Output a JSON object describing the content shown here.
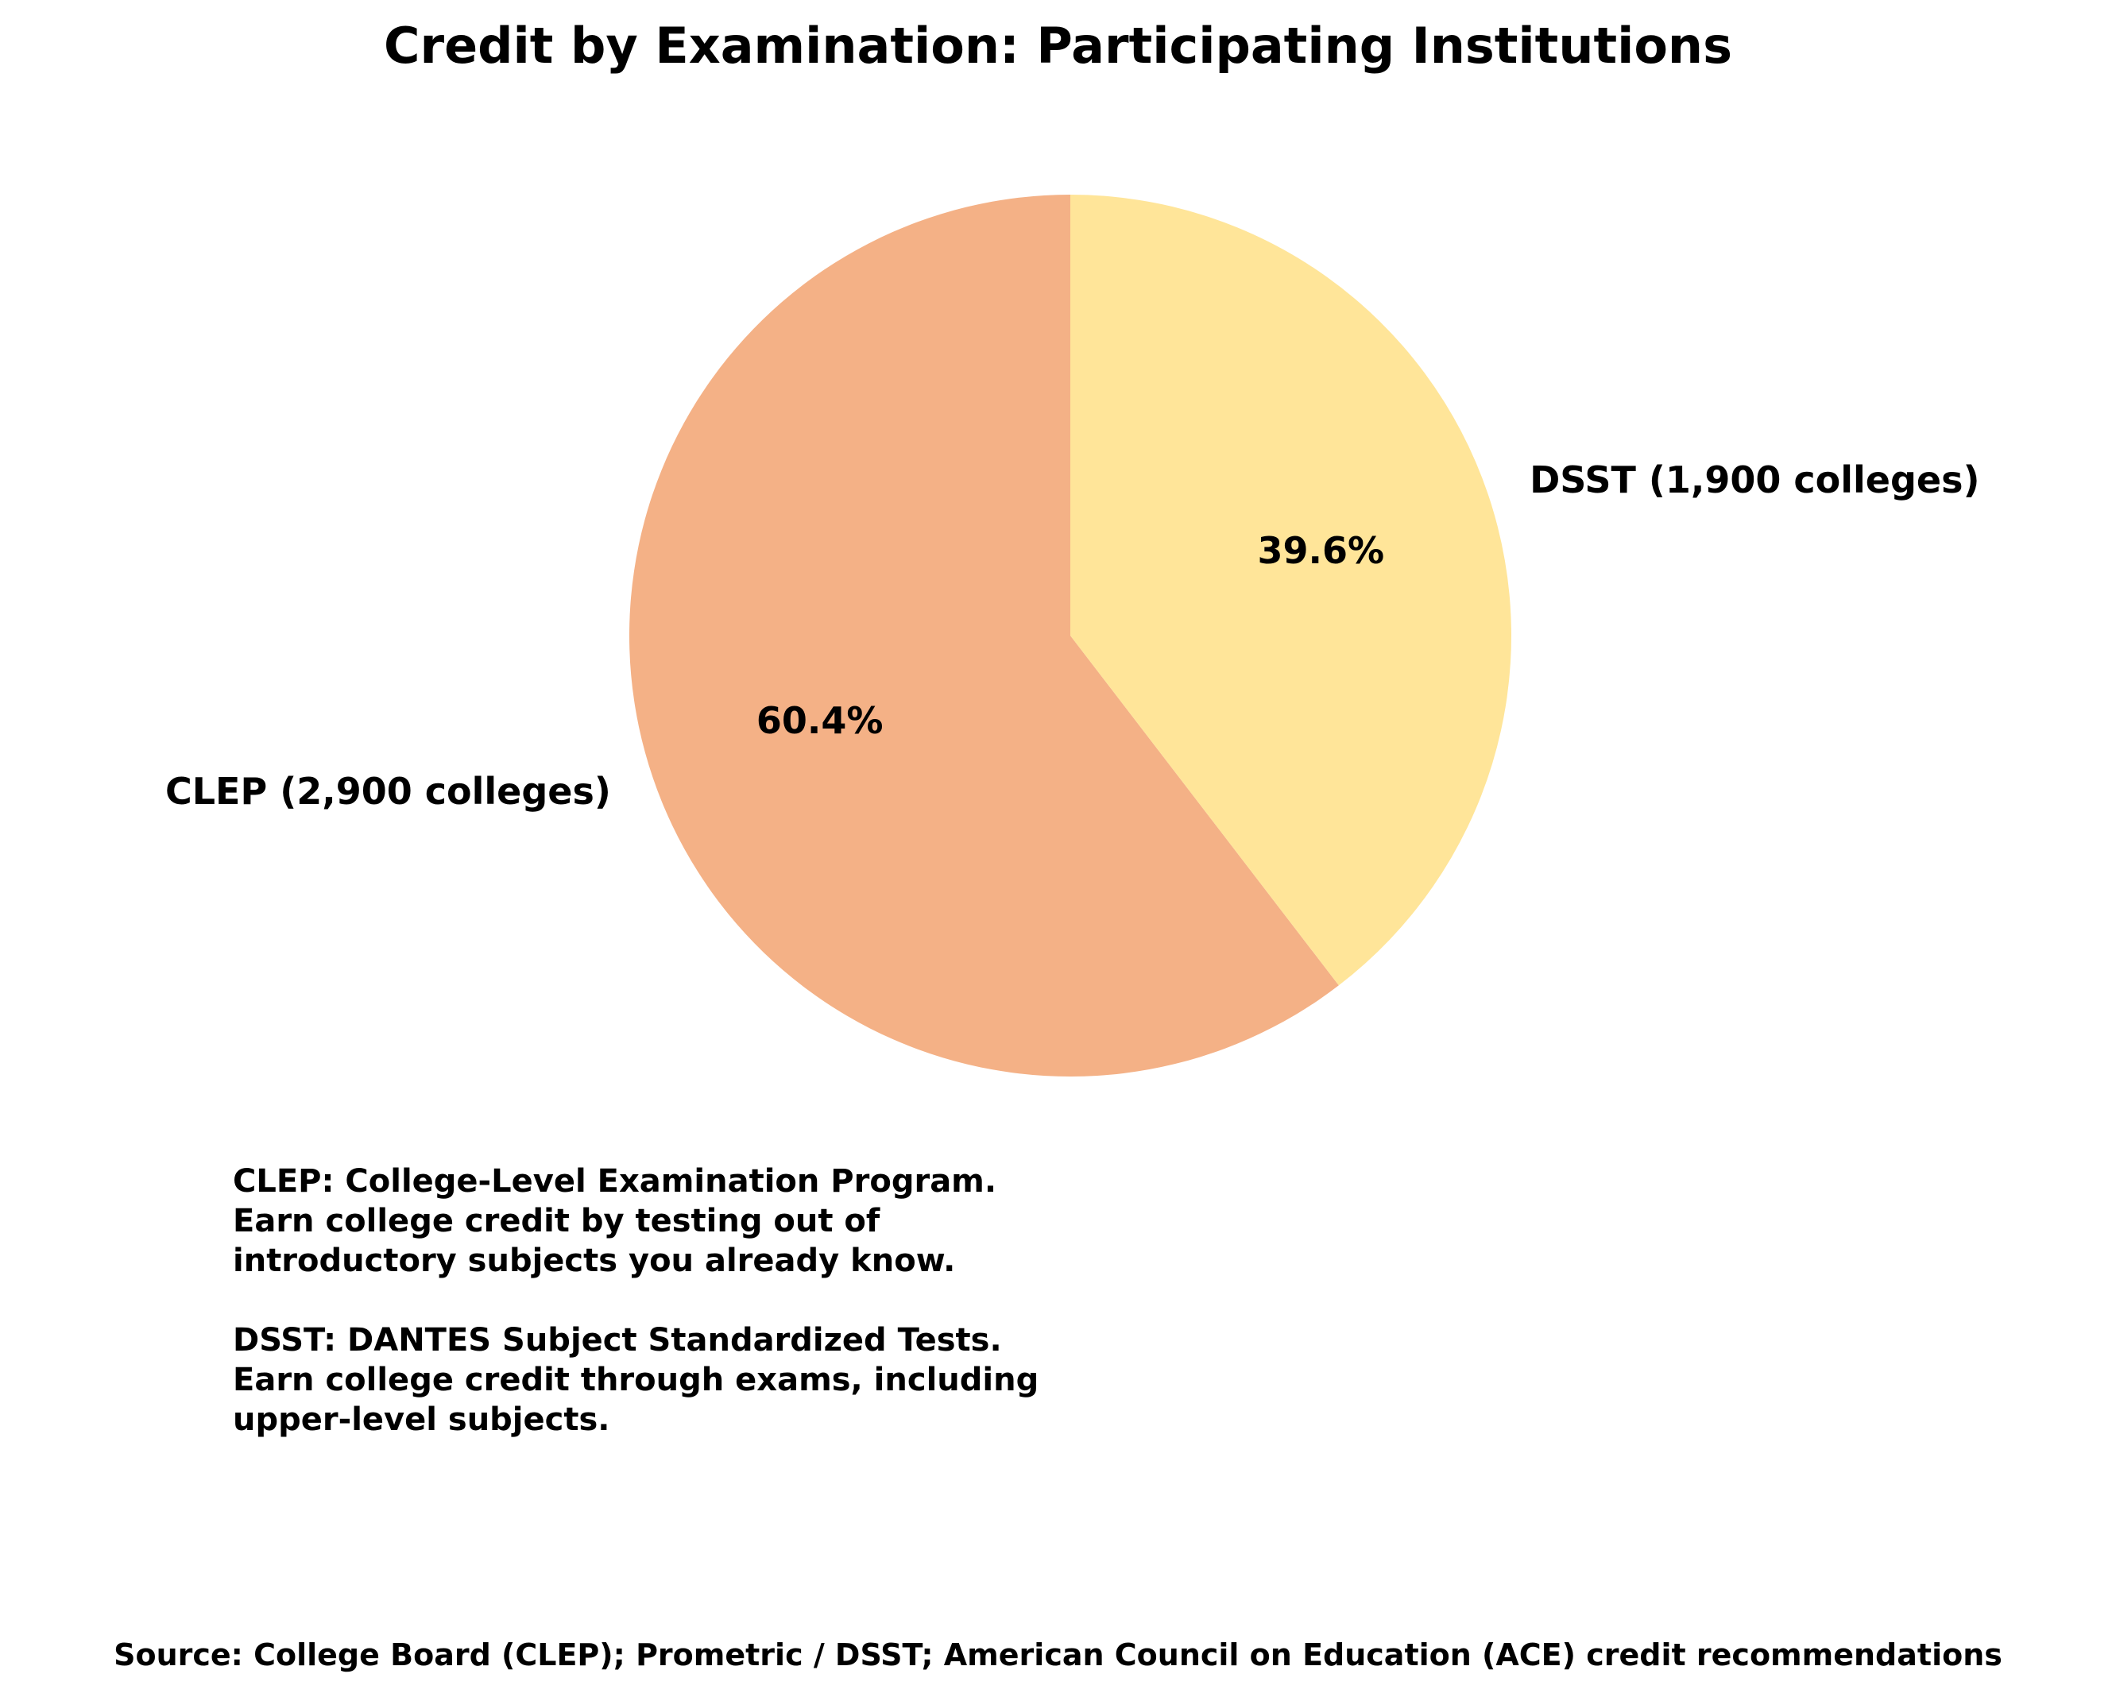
{
  "chart_data": {
    "type": "pie",
    "title": "Credit by Examination: Participating Institutions",
    "slices": [
      {
        "label": "CLEP (2,900 colleges)",
        "value": 2900,
        "percent_label": "60.4%",
        "color": "#f4b186"
      },
      {
        "label": "DSST (1,900 colleges)",
        "value": 1900,
        "percent_label": "39.6%",
        "color": "#ffe599"
      }
    ],
    "start_angle_deg": 90,
    "direction": "clockwise-for-dsst"
  },
  "notes": {
    "clep": "CLEP: College-Level Examination Program.\nEarn college credit by testing out of\nintroductory subjects you already know.",
    "dsst": "DSST: DANTES Subject Standardized Tests.\nEarn college credit through exams, including\nupper-level subjects."
  },
  "source": "Source: College Board (CLEP); Prometric / DSST; American Council on Education (ACE) credit recommendations"
}
